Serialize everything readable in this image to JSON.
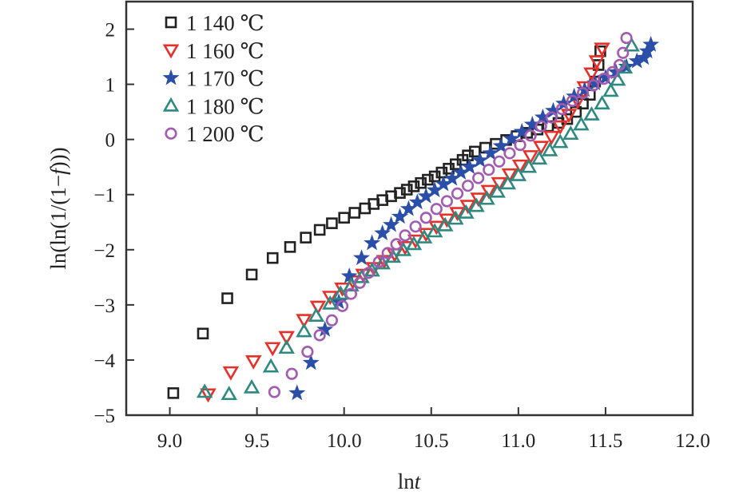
{
  "chart_data": {
    "type": "scatter",
    "title": "",
    "xlabel": {
      "prefix": "ln",
      "italic": "t",
      "suffix": ""
    },
    "ylabel": {
      "prefix": "ln(ln(1/(1−",
      "italic": "f",
      "suffix": ")))"
    },
    "xlim": [
      8.75,
      12.0
    ],
    "ylim": [
      -5,
      2.5
    ],
    "xticks": [
      "9.0",
      "9.5",
      "10.0",
      "10.5",
      "11.0",
      "11.5",
      "12.0"
    ],
    "xtick_values": [
      9.0,
      9.5,
      10.0,
      10.5,
      11.0,
      11.5,
      12.0
    ],
    "yticks": [
      "2",
      "1",
      "0",
      "−1",
      "−2",
      "−3",
      "−4",
      "−5"
    ],
    "ytick_values": [
      2,
      1,
      0,
      -1,
      -2,
      -3,
      -4,
      -5
    ],
    "grid": false,
    "legend_placement": "top-left",
    "series": [
      {
        "name": "1 140 ℃",
        "marker": "square-open",
        "color": "#222222",
        "points": [
          [
            9.02,
            -4.6
          ],
          [
            9.19,
            -3.52
          ],
          [
            9.33,
            -2.88
          ],
          [
            9.47,
            -2.45
          ],
          [
            9.59,
            -2.15
          ],
          [
            9.69,
            -1.95
          ],
          [
            9.78,
            -1.78
          ],
          [
            9.86,
            -1.64
          ],
          [
            9.93,
            -1.52
          ],
          [
            10.0,
            -1.42
          ],
          [
            10.06,
            -1.33
          ],
          [
            10.12,
            -1.25
          ],
          [
            10.17,
            -1.17
          ],
          [
            10.22,
            -1.1
          ],
          [
            10.27,
            -1.03
          ],
          [
            10.32,
            -0.97
          ],
          [
            10.36,
            -0.91
          ],
          [
            10.4,
            -0.85
          ],
          [
            10.44,
            -0.79
          ],
          [
            10.48,
            -0.73
          ],
          [
            10.52,
            -0.67
          ],
          [
            10.56,
            -0.6
          ],
          [
            10.6,
            -0.53
          ],
          [
            10.64,
            -0.45
          ],
          [
            10.68,
            -0.37
          ],
          [
            10.71,
            -0.29
          ],
          [
            10.75,
            -0.22
          ],
          [
            10.81,
            -0.15
          ],
          [
            10.87,
            -0.08
          ],
          [
            10.93,
            -0.01
          ],
          [
            10.99,
            0.06
          ],
          [
            11.05,
            0.12
          ],
          [
            11.11,
            0.18
          ],
          [
            11.17,
            0.24
          ],
          [
            11.23,
            0.3
          ],
          [
            11.28,
            0.37
          ],
          [
            11.33,
            0.5
          ],
          [
            11.37,
            0.65
          ],
          [
            11.41,
            0.81
          ],
          [
            11.44,
            1.05
          ],
          [
            11.46,
            1.35
          ],
          [
            11.47,
            1.6
          ]
        ]
      },
      {
        "name": "1 160 ℃",
        "marker": "triangle-down-open",
        "color": "#e8302a",
        "points": [
          [
            9.22,
            -4.62
          ],
          [
            9.35,
            -4.22
          ],
          [
            9.48,
            -4.02
          ],
          [
            9.59,
            -3.78
          ],
          [
            9.67,
            -3.58
          ],
          [
            9.77,
            -3.27
          ],
          [
            9.85,
            -3.03
          ],
          [
            9.92,
            -2.85
          ],
          [
            9.99,
            -2.7
          ],
          [
            10.05,
            -2.57
          ],
          [
            10.11,
            -2.45
          ],
          [
            10.17,
            -2.33
          ],
          [
            10.23,
            -2.2
          ],
          [
            10.29,
            -2.08
          ],
          [
            10.35,
            -1.95
          ],
          [
            10.41,
            -1.83
          ],
          [
            10.47,
            -1.71
          ],
          [
            10.53,
            -1.58
          ],
          [
            10.59,
            -1.45
          ],
          [
            10.65,
            -1.33
          ],
          [
            10.71,
            -1.2
          ],
          [
            10.77,
            -1.07
          ],
          [
            10.83,
            -0.93
          ],
          [
            10.89,
            -0.79
          ],
          [
            10.95,
            -0.63
          ],
          [
            11.01,
            -0.47
          ],
          [
            11.07,
            -0.3
          ],
          [
            11.13,
            -0.13
          ],
          [
            11.19,
            0.05
          ],
          [
            11.24,
            0.24
          ],
          [
            11.29,
            0.45
          ],
          [
            11.34,
            0.7
          ],
          [
            11.38,
            0.95
          ],
          [
            11.42,
            1.2
          ],
          [
            11.45,
            1.42
          ],
          [
            11.48,
            1.65
          ]
        ]
      },
      {
        "name": "1 170 ℃",
        "marker": "star-filled",
        "color": "#2b4fa8",
        "points": [
          [
            9.73,
            -4.6
          ],
          [
            9.81,
            -4.05
          ],
          [
            9.89,
            -3.45
          ],
          [
            9.97,
            -2.95
          ],
          [
            10.03,
            -2.48
          ],
          [
            10.1,
            -2.15
          ],
          [
            10.16,
            -1.88
          ],
          [
            10.22,
            -1.7
          ],
          [
            10.27,
            -1.55
          ],
          [
            10.32,
            -1.4
          ],
          [
            10.37,
            -1.26
          ],
          [
            10.42,
            -1.14
          ],
          [
            10.47,
            -1.03
          ],
          [
            10.52,
            -0.92
          ],
          [
            10.57,
            -0.81
          ],
          [
            10.62,
            -0.71
          ],
          [
            10.67,
            -0.6
          ],
          [
            10.72,
            -0.5
          ],
          [
            10.78,
            -0.38
          ],
          [
            10.84,
            -0.25
          ],
          [
            10.9,
            -0.12
          ],
          [
            10.96,
            0.01
          ],
          [
            11.02,
            0.14
          ],
          [
            11.08,
            0.27
          ],
          [
            11.14,
            0.4
          ],
          [
            11.2,
            0.52
          ],
          [
            11.26,
            0.65
          ],
          [
            11.32,
            0.78
          ],
          [
            11.38,
            0.9
          ],
          [
            11.44,
            1.02
          ],
          [
            11.5,
            1.12
          ],
          [
            11.56,
            1.22
          ],
          [
            11.62,
            1.32
          ],
          [
            11.68,
            1.42
          ],
          [
            11.72,
            1.48
          ],
          [
            11.74,
            1.6
          ],
          [
            11.76,
            1.72
          ]
        ]
      },
      {
        "name": "1 180 ℃",
        "marker": "triangle-up-open",
        "color": "#2e8a80",
        "points": [
          [
            9.2,
            -4.58
          ],
          [
            9.34,
            -4.62
          ],
          [
            9.47,
            -4.5
          ],
          [
            9.58,
            -4.12
          ],
          [
            9.67,
            -3.78
          ],
          [
            9.77,
            -3.48
          ],
          [
            9.84,
            -3.2
          ],
          [
            9.92,
            -2.98
          ],
          [
            9.98,
            -2.8
          ],
          [
            10.04,
            -2.65
          ],
          [
            10.1,
            -2.5
          ],
          [
            10.16,
            -2.38
          ],
          [
            10.22,
            -2.25
          ],
          [
            10.28,
            -2.13
          ],
          [
            10.34,
            -2.01
          ],
          [
            10.4,
            -1.9
          ],
          [
            10.46,
            -1.78
          ],
          [
            10.52,
            -1.67
          ],
          [
            10.58,
            -1.56
          ],
          [
            10.64,
            -1.44
          ],
          [
            10.7,
            -1.33
          ],
          [
            10.76,
            -1.21
          ],
          [
            10.82,
            -1.08
          ],
          [
            10.88,
            -0.95
          ],
          [
            10.94,
            -0.8
          ],
          [
            11.0,
            -0.65
          ],
          [
            11.06,
            -0.5
          ],
          [
            11.12,
            -0.35
          ],
          [
            11.18,
            -0.2
          ],
          [
            11.24,
            -0.05
          ],
          [
            11.3,
            0.1
          ],
          [
            11.36,
            0.27
          ],
          [
            11.42,
            0.45
          ],
          [
            11.48,
            0.65
          ],
          [
            11.53,
            0.88
          ],
          [
            11.57,
            1.08
          ],
          [
            11.61,
            1.3
          ],
          [
            11.65,
            1.7
          ]
        ]
      },
      {
        "name": "1 200 ℃",
        "marker": "circle-open",
        "color": "#a25bb0",
        "points": [
          [
            9.6,
            -4.58
          ],
          [
            9.7,
            -4.25
          ],
          [
            9.79,
            -3.85
          ],
          [
            9.86,
            -3.55
          ],
          [
            9.93,
            -3.28
          ],
          [
            9.99,
            -3.02
          ],
          [
            10.04,
            -2.8
          ],
          [
            10.09,
            -2.6
          ],
          [
            10.14,
            -2.42
          ],
          [
            10.2,
            -2.22
          ],
          [
            10.25,
            -2.06
          ],
          [
            10.3,
            -1.9
          ],
          [
            10.35,
            -1.74
          ],
          [
            10.41,
            -1.58
          ],
          [
            10.47,
            -1.42
          ],
          [
            10.53,
            -1.26
          ],
          [
            10.59,
            -1.12
          ],
          [
            10.65,
            -0.98
          ],
          [
            10.71,
            -0.84
          ],
          [
            10.77,
            -0.7
          ],
          [
            10.83,
            -0.55
          ],
          [
            10.89,
            -0.4
          ],
          [
            10.95,
            -0.25
          ],
          [
            11.01,
            -0.1
          ],
          [
            11.07,
            0.07
          ],
          [
            11.13,
            0.24
          ],
          [
            11.19,
            0.4
          ],
          [
            11.25,
            0.55
          ],
          [
            11.31,
            0.7
          ],
          [
            11.37,
            0.84
          ],
          [
            11.43,
            0.98
          ],
          [
            11.49,
            1.1
          ],
          [
            11.54,
            1.22
          ],
          [
            11.58,
            1.35
          ],
          [
            11.6,
            1.57
          ],
          [
            11.62,
            1.84
          ]
        ]
      }
    ]
  }
}
